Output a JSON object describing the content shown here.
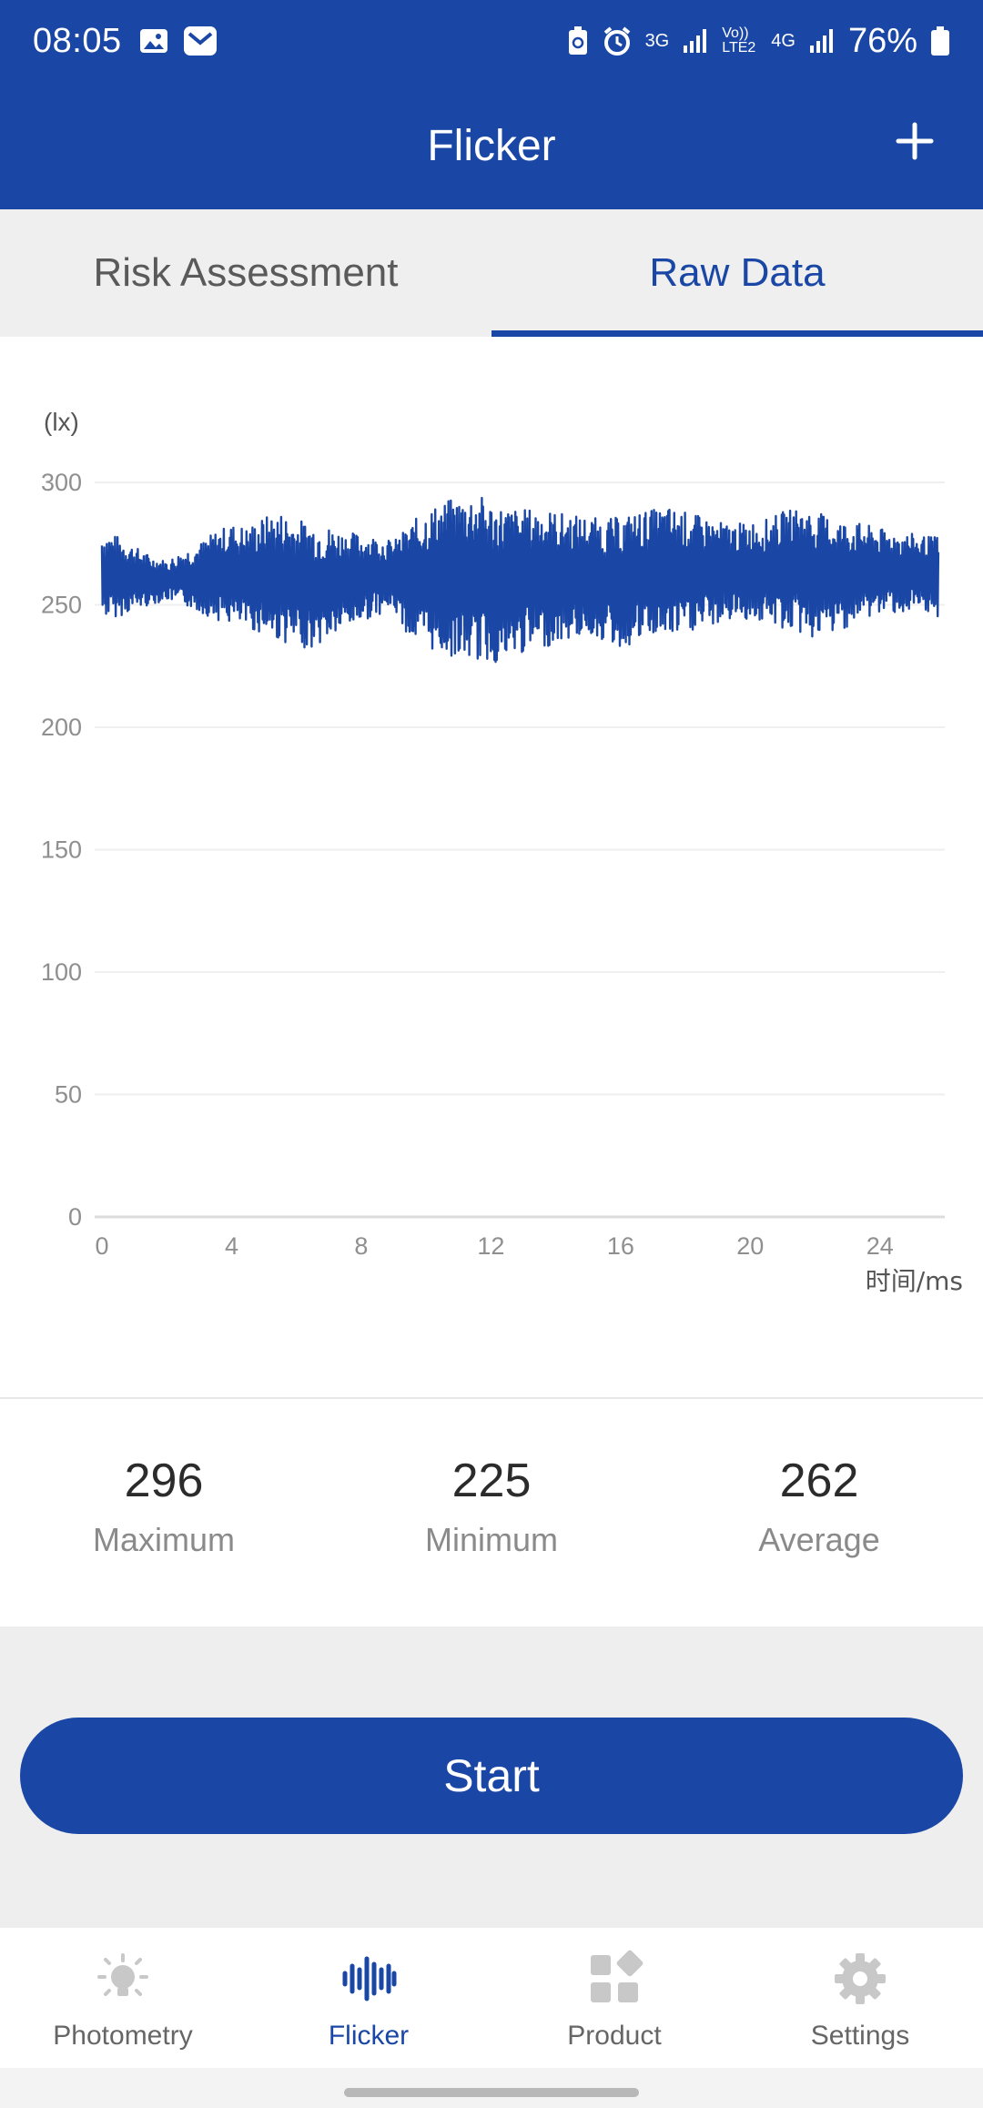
{
  "status_bar": {
    "time": "08:05",
    "network_1": "3G",
    "network_2": "Vo)) LTE2",
    "network_3": "4G",
    "battery": "76%"
  },
  "app_bar": {
    "title": "Flicker",
    "add_icon": "plus-icon"
  },
  "tabs": [
    {
      "label": "Risk Assessment",
      "active": false
    },
    {
      "label": "Raw Data",
      "active": true
    }
  ],
  "chart_data": {
    "type": "line",
    "title": "",
    "ylabel": "(lx)",
    "xlabel": "时间/ms",
    "xlim": [
      0,
      26
    ],
    "ylim": [
      0,
      300
    ],
    "x_ticks": [
      0,
      4,
      8,
      12,
      16,
      20,
      24
    ],
    "y_ticks": [
      0,
      50,
      100,
      150,
      200,
      250,
      300
    ],
    "grid": true,
    "series": [
      {
        "color": "#1a47a6",
        "x": [
          0.0,
          0.5,
          1.0,
          1.5,
          2.0,
          2.5,
          3.0,
          3.5,
          4.0,
          4.5,
          5.0,
          5.5,
          6.0,
          6.5,
          7.0,
          7.5,
          8.0,
          8.5,
          9.0,
          9.5,
          10.0,
          10.5,
          11.0,
          11.5,
          12.0,
          12.5,
          13.0,
          13.5,
          14.0,
          14.5,
          15.0,
          15.5,
          16.0,
          16.5,
          17.0,
          17.5,
          18.0,
          18.5,
          19.0,
          19.5,
          20.0,
          20.5,
          21.0,
          21.5,
          22.0,
          22.5,
          23.0,
          23.5,
          24.0,
          24.5,
          25.0,
          25.5
        ],
        "y_max": [
          280,
          278,
          274,
          270,
          268,
          272,
          275,
          280,
          283,
          282,
          286,
          288,
          285,
          284,
          282,
          280,
          279,
          278,
          276,
          283,
          289,
          292,
          294,
          296,
          292,
          290,
          289,
          290,
          288,
          287,
          286,
          285,
          286,
          288,
          289,
          290,
          288,
          286,
          284,
          283,
          284,
          285,
          288,
          290,
          288,
          286,
          284,
          283,
          281,
          280,
          279,
          278
        ],
        "y_min": [
          245,
          245,
          248,
          250,
          252,
          250,
          247,
          244,
          242,
          240,
          238,
          235,
          233,
          232,
          236,
          240,
          243,
          246,
          248,
          236,
          232,
          230,
          228,
          227,
          226,
          226,
          230,
          232,
          234,
          236,
          238,
          235,
          232,
          234,
          237,
          236,
          238,
          240,
          242,
          244,
          244,
          242,
          240,
          238,
          236,
          238,
          241,
          244,
          246,
          247,
          246,
          245
        ]
      }
    ]
  },
  "stats": [
    {
      "value": "296",
      "label": "Maximum"
    },
    {
      "value": "225",
      "label": "Minimum"
    },
    {
      "value": "262",
      "label": "Average"
    }
  ],
  "controls": {
    "start_label": "Start"
  },
  "bottom_nav": [
    {
      "label": "Photometry",
      "icon": "lightbulb-icon",
      "active": false
    },
    {
      "label": "Flicker",
      "icon": "waveform-icon",
      "active": true
    },
    {
      "label": "Product",
      "icon": "grid-icon",
      "active": false
    },
    {
      "label": "Settings",
      "icon": "gear-icon",
      "active": false
    }
  ],
  "colors": {
    "primary": "#1a47a6",
    "background": "#eeeeee"
  }
}
